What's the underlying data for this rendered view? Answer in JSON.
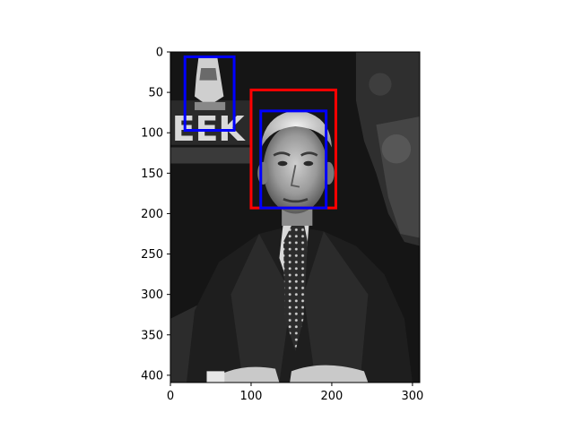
{
  "figure": {
    "image": {
      "subject": "black-and-white photo of an older man in a dark suit and patterned tie, seated with hands clasped",
      "x_extent": [
        0,
        309
      ],
      "y_extent": [
        0,
        409
      ]
    },
    "axes": {
      "x_ticks": [
        0,
        100,
        200,
        300
      ],
      "y_ticks": [
        0,
        50,
        100,
        150,
        200,
        250,
        300,
        350,
        400
      ]
    },
    "boxes": [
      {
        "name": "red-box-face",
        "color": "#ff0000",
        "x0": 100,
        "y0": 47,
        "x1": 205,
        "y1": 193
      },
      {
        "name": "blue-box-face",
        "color": "#0000ff",
        "x0": 112,
        "y0": 73,
        "x1": 193,
        "y1": 193
      },
      {
        "name": "blue-box-background",
        "color": "#0000ff",
        "x0": 18,
        "y0": 6,
        "x1": 79,
        "y1": 97
      }
    ]
  }
}
